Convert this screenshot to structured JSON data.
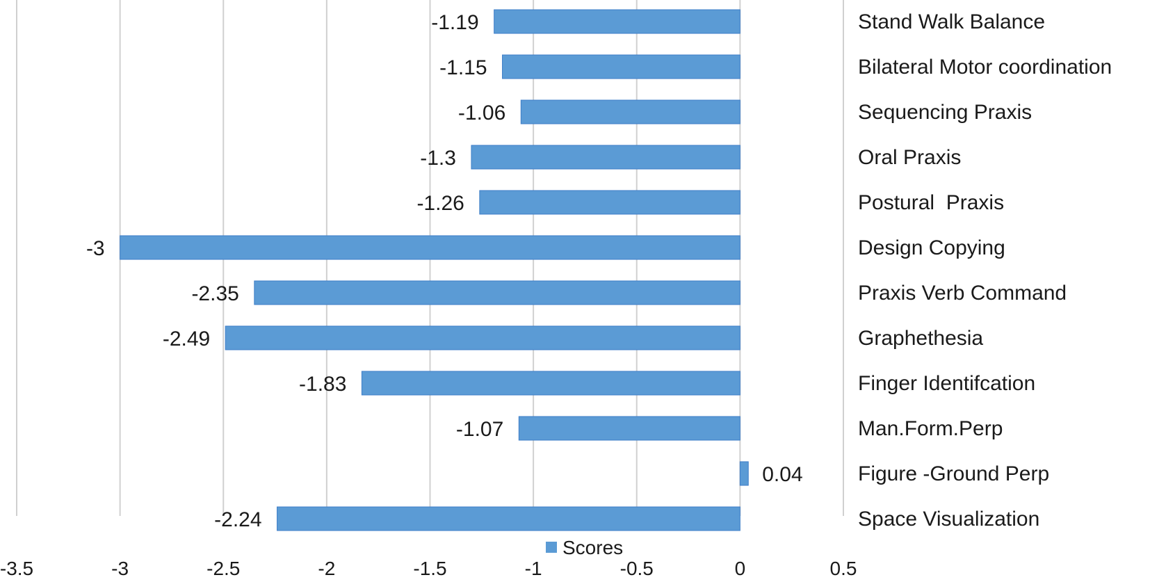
{
  "chart_data": {
    "type": "bar",
    "orientation": "horizontal",
    "title": "",
    "xlabel": "",
    "ylabel": "",
    "xlim": [
      -3.5,
      0.5
    ],
    "x_ticks": [
      -3.5,
      -3,
      -2.5,
      -2,
      -1.5,
      -1,
      -0.5,
      0,
      0.5
    ],
    "x_tick_labels": [
      "-3.5",
      "-3",
      "-2.5",
      "-2",
      "-1.5",
      "-1",
      "-0.5",
      "0",
      "0.5"
    ],
    "grid": "vertical",
    "legend": {
      "position": "bottom",
      "entries": [
        "Scores"
      ]
    },
    "categories": [
      "Stand Walk Balance",
      "Bilateral Motor coordination",
      "Sequencing Praxis",
      "Oral Praxis",
      "Postural  Praxis",
      "Design Copying",
      "Praxis Verb Command",
      "Graphethesia",
      "Finger Identifcation",
      "Man.Form.Perp",
      "Figure -Ground Perp",
      "Space Visualization"
    ],
    "series": [
      {
        "name": "Scores",
        "color": "#5b9bd5",
        "values": [
          -1.19,
          -1.15,
          -1.06,
          -1.3,
          -1.26,
          -3,
          -2.35,
          -2.49,
          -1.83,
          -1.07,
          0.04,
          -2.24
        ],
        "labels": [
          "-1.19",
          "-1.15",
          "-1.06",
          "-1.3",
          "-1.26",
          "-3",
          "-2.35",
          "-2.49",
          "-1.83",
          "-1.07",
          "0.04",
          "-2.24"
        ]
      }
    ]
  }
}
